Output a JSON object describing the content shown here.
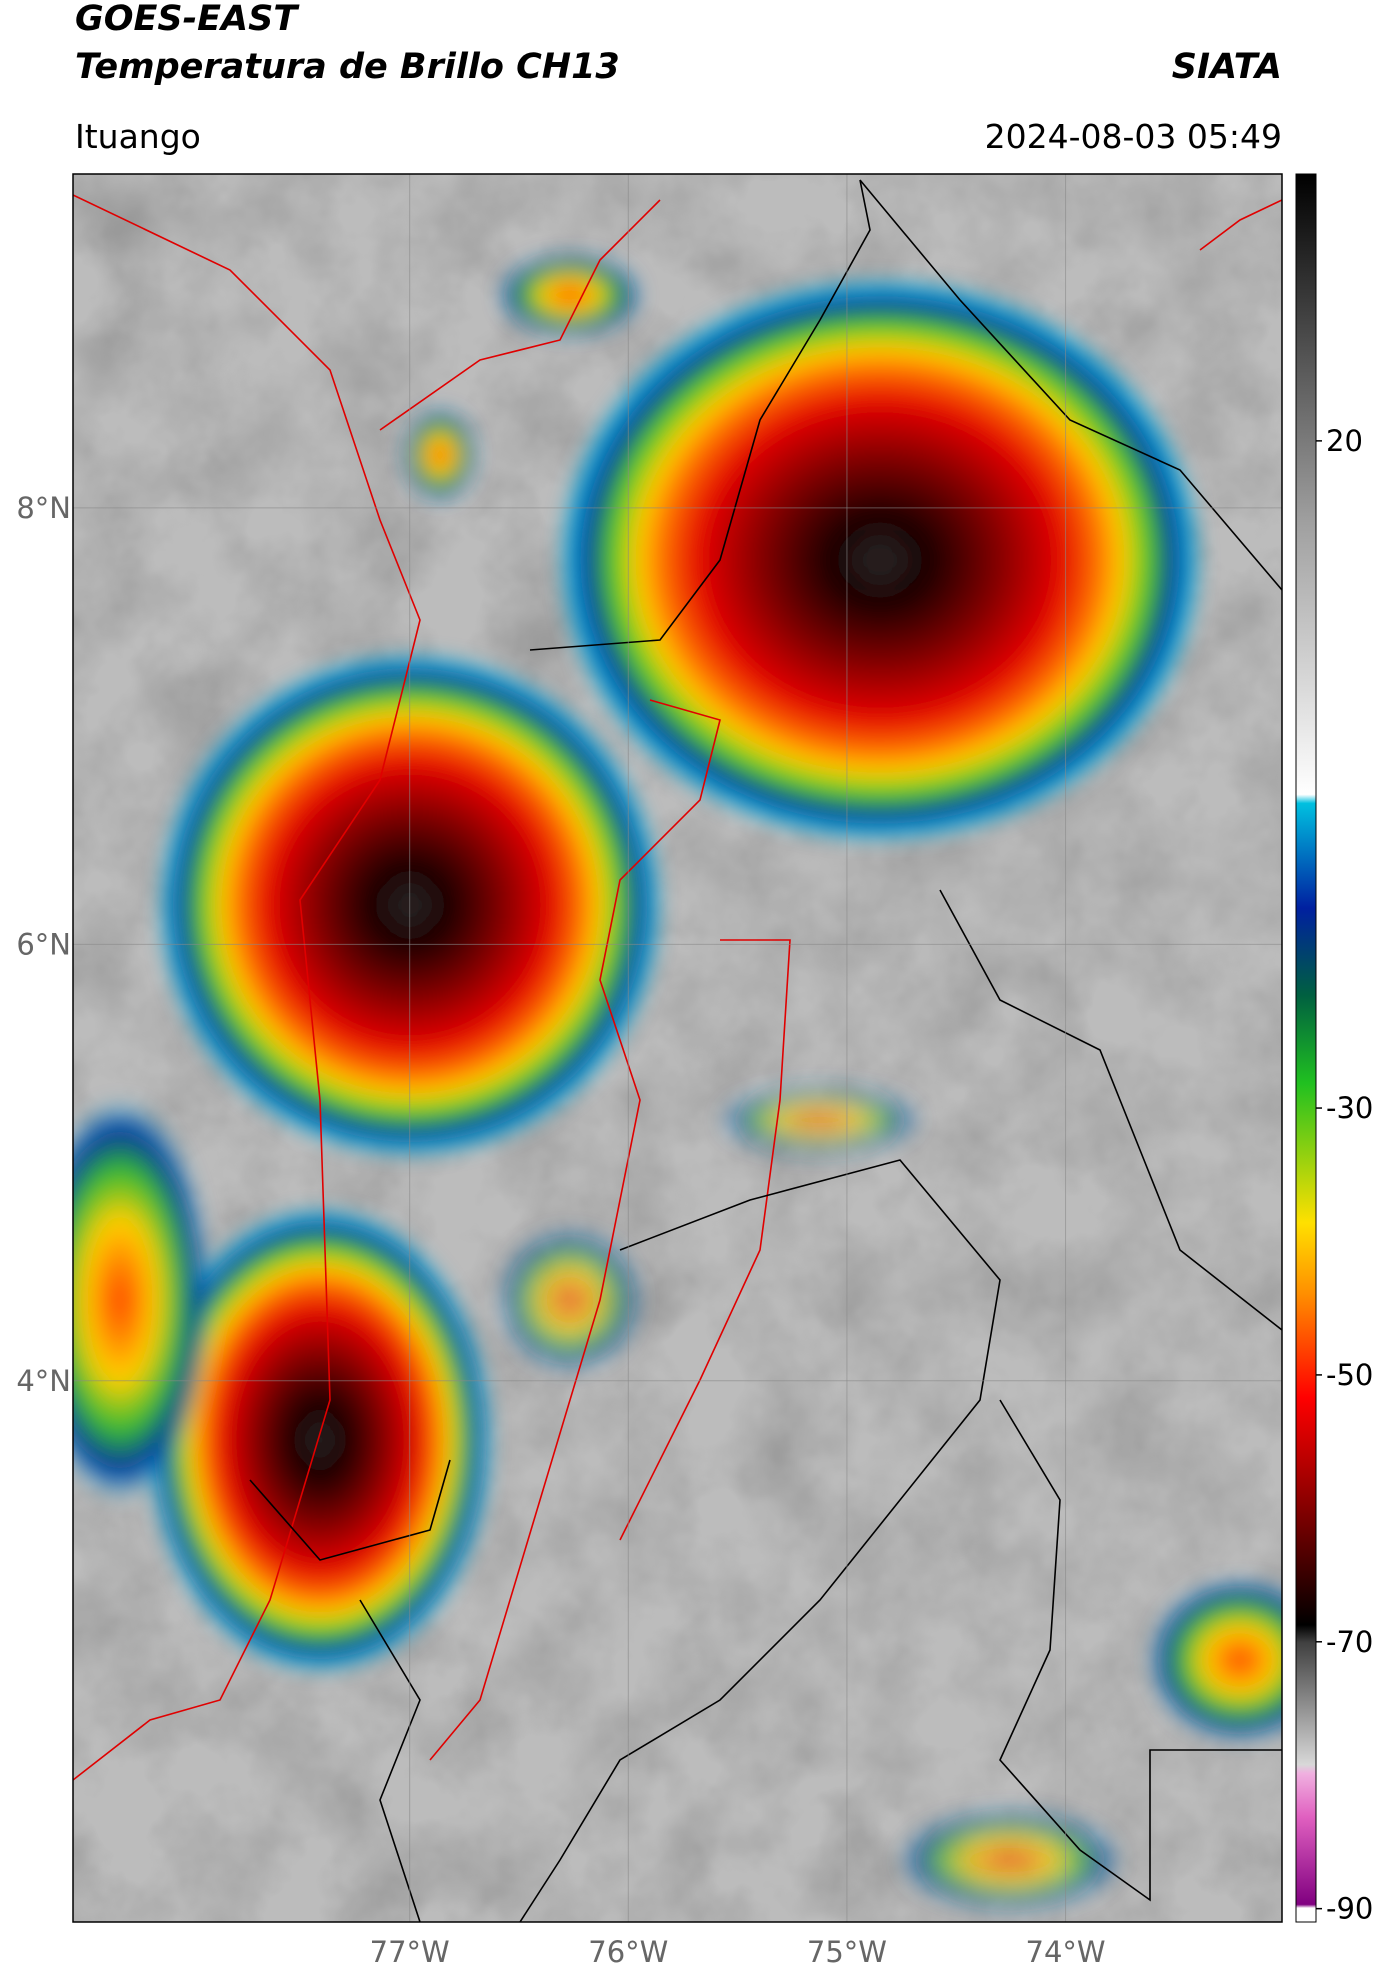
{
  "header": {
    "title": "GOES-EAST",
    "subtitle": "Temperatura de Brillo CH13",
    "source": "SIATA",
    "location": "Ituango",
    "datetime": "2024-08-03 05:49"
  },
  "map": {
    "latlim": [
      1.52,
      9.53
    ],
    "lonlim": [
      -78.54,
      -73.01
    ],
    "lat_ticks": [
      {
        "value": 8,
        "label": "8°N"
      },
      {
        "value": 6,
        "label": "6°N"
      },
      {
        "value": 4,
        "label": "4°N"
      }
    ],
    "lon_ticks": [
      {
        "value": -77,
        "label": "77°W"
      },
      {
        "value": -76,
        "label": "76°W"
      },
      {
        "value": -75,
        "label": "75°W"
      },
      {
        "value": -74,
        "label": "74°W"
      }
    ],
    "colorbar": {
      "lim": [
        -91,
        40
      ],
      "ticks": [
        20,
        -30,
        -50,
        -70,
        -90
      ]
    }
  }
}
